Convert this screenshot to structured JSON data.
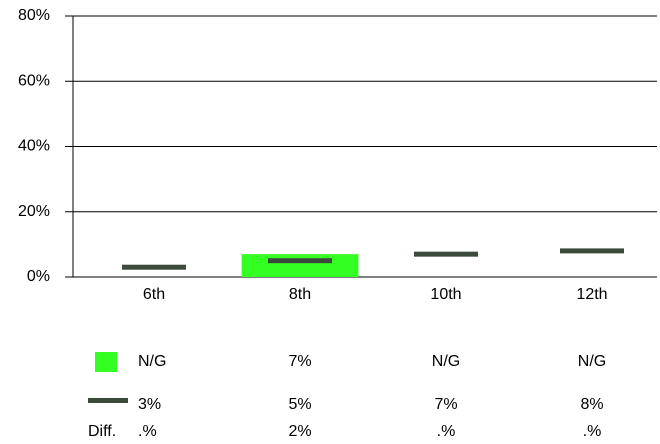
{
  "chart_data": {
    "type": "bar",
    "categories": [
      "6th",
      "8th",
      "10th",
      "12th"
    ],
    "ylim": [
      0,
      80
    ],
    "yticks": [
      {
        "value": 0,
        "label": "0%"
      },
      {
        "value": 20,
        "label": "20%"
      },
      {
        "value": 40,
        "label": "40%"
      },
      {
        "value": 60,
        "label": "60%"
      },
      {
        "value": 80,
        "label": "80%"
      }
    ],
    "grid": true,
    "series": [
      {
        "type": "bar",
        "color": "#33ff22",
        "values": [
          null,
          7,
          null,
          null
        ],
        "value_labels": [
          "N/G",
          "7%",
          "N/G",
          "N/G"
        ]
      },
      {
        "type": "marker",
        "color": "#3b4a3b",
        "values": [
          3,
          5,
          7,
          8
        ],
        "value_labels": [
          "3%",
          "5%",
          "7%",
          "8%"
        ]
      }
    ],
    "diff_label": "Diff.",
    "diff_values": [
      ".%",
      "2%",
      ".%",
      ".%"
    ]
  }
}
